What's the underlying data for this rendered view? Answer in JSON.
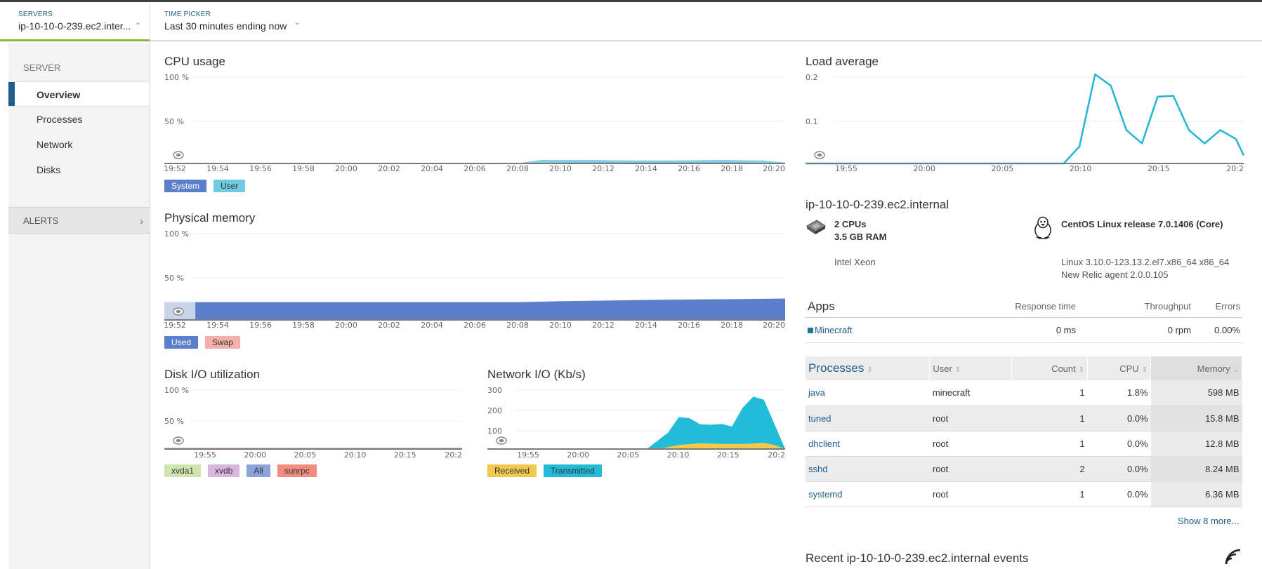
{
  "header": {
    "servers_caption": "SERVERS",
    "servers_value": "ip-10-10-0-239.ec2.inter...",
    "time_caption": "TIME PICKER",
    "time_value": "Last 30 minutes ending now"
  },
  "sidebar": {
    "caption": "SERVER",
    "items": [
      {
        "label": "Overview",
        "active": true
      },
      {
        "label": "Processes"
      },
      {
        "label": "Network"
      },
      {
        "label": "Disks"
      }
    ],
    "alerts_label": "ALERTS"
  },
  "colors": {
    "accent": "#1f5d8a",
    "server_tab_underline": "#8ab63e",
    "system": "#5b7fcc",
    "user": "#6fcbe0",
    "used": "#5b7fcc",
    "swap": "#f4b0a8",
    "xvda1": "#cfe5b0",
    "xvdb": "#d8b6dd",
    "all": "#8aa3d8",
    "sunrpc": "#f28c80",
    "received": "#f2c94c",
    "transmitted": "#22bcd8",
    "load": "#22b6d6"
  },
  "icons": {
    "servers_chevron": "chevron-down-icon",
    "time_chevron": "chevron-down-icon",
    "alerts_arrow": "chevron-right-icon",
    "cpu": "cpu-chip-icon",
    "os": "linux-tux-icon",
    "rss": "rss-icon"
  },
  "chart_data": [
    {
      "id": "cpu",
      "type": "area",
      "title": "CPU usage",
      "y_ticks": [
        "100 %",
        "50 %"
      ],
      "x_ticks": [
        "19:52",
        "19:54",
        "19:56",
        "19:58",
        "20:00",
        "20:02",
        "20:04",
        "20:06",
        "20:08",
        "20:10",
        "20:12",
        "20:14",
        "20:16",
        "20:18",
        "20:20"
      ],
      "x_range": [
        0,
        28
      ],
      "ylim": [
        0,
        100
      ],
      "series": [
        {
          "name": "System",
          "x": [
            0,
            16,
            18,
            20,
            22,
            24,
            26,
            28
          ],
          "values": [
            0.5,
            0.5,
            1,
            1,
            1,
            1,
            1,
            0.5
          ]
        },
        {
          "name": "User",
          "x": [
            0,
            16,
            17,
            19,
            21,
            23,
            25,
            27,
            28
          ],
          "values": [
            0.5,
            0.5,
            4,
            4,
            3.5,
            3.5,
            4,
            3.5,
            1
          ]
        }
      ]
    },
    {
      "id": "mem",
      "type": "area",
      "title": "Physical memory",
      "y_ticks": [
        "100 %",
        "50 %"
      ],
      "x_ticks": [
        "19:52",
        "19:54",
        "19:56",
        "19:58",
        "20:00",
        "20:02",
        "20:04",
        "20:06",
        "20:08",
        "20:10",
        "20:12",
        "20:14",
        "20:16",
        "20:18",
        "20:20"
      ],
      "x_range": [
        0,
        28
      ],
      "ylim": [
        0,
        100
      ],
      "series": [
        {
          "name": "Used",
          "x": [
            0,
            1.4,
            16,
            18,
            22,
            26,
            28
          ],
          "values": [
            20,
            20,
            20,
            21,
            22.5,
            23.5,
            24
          ]
        },
        {
          "name": "Swap",
          "x": [
            0,
            28
          ],
          "values": [
            0,
            0
          ]
        }
      ]
    },
    {
      "id": "disk",
      "type": "line",
      "title": "Disk I/O utilization",
      "y_ticks": [
        "100 %",
        "50 %"
      ],
      "x_ticks": [
        "19:55",
        "20:00",
        "20:05",
        "20:10",
        "20:15",
        "20:2"
      ],
      "x_range": [
        0,
        28
      ],
      "ylim": [
        0,
        100
      ],
      "series": [
        {
          "name": "xvda1",
          "x": [
            0,
            28
          ],
          "values": [
            0,
            0
          ]
        },
        {
          "name": "xvdb",
          "x": [
            0,
            28
          ],
          "values": [
            0,
            0
          ]
        },
        {
          "name": "All",
          "x": [
            0,
            28
          ],
          "values": [
            0.5,
            0.5
          ]
        },
        {
          "name": "sunrpc",
          "x": [
            0,
            28
          ],
          "values": [
            1,
            1
          ]
        }
      ]
    },
    {
      "id": "net",
      "type": "area",
      "title": "Network I/O (Kb/s)",
      "y_ticks": [
        "300",
        "200",
        "100"
      ],
      "x_ticks": [
        "19:55",
        "20:00",
        "20:05",
        "20:10",
        "20:15",
        "20:2"
      ],
      "x_range": [
        0,
        28
      ],
      "ylim": [
        0,
        300
      ],
      "series": [
        {
          "name": "Received",
          "x": [
            0,
            16,
            17,
            18,
            20,
            22,
            24,
            26,
            27,
            28
          ],
          "values": [
            0,
            0,
            10,
            20,
            28,
            25,
            25,
            30,
            20,
            0
          ]
        },
        {
          "name": "Transmitted",
          "x": [
            0,
            15,
            17,
            18,
            19,
            20,
            21,
            22,
            23,
            24,
            25,
            26,
            27,
            28
          ],
          "values": [
            0,
            0,
            80,
            155,
            150,
            120,
            118,
            122,
            110,
            200,
            255,
            240,
            120,
            0
          ]
        }
      ]
    },
    {
      "id": "load",
      "type": "line",
      "title": "Load average",
      "y_ticks": [
        "0.2",
        "0.1"
      ],
      "x_ticks": [
        "19:55",
        "20:00",
        "20:05",
        "20:10",
        "20:15",
        "20:2"
      ],
      "x_range": [
        0,
        28
      ],
      "ylim": [
        0,
        0.2
      ],
      "series": [
        {
          "name": "Load",
          "x": [
            0,
            16.5,
            17.5,
            18.5,
            19.5,
            20.5,
            21.5,
            22.5,
            23.5,
            24.5,
            25.5,
            26.5,
            27.5,
            28
          ],
          "values": [
            0,
            0,
            0.038,
            0.2,
            0.175,
            0.075,
            0.045,
            0.15,
            0.152,
            0.075,
            0.045,
            0.075,
            0.055,
            0.018
          ]
        }
      ]
    }
  ],
  "host": {
    "title": "ip-10-10-0-239.ec2.internal",
    "cpus": "2 CPUs",
    "ram": "3.5 GB RAM",
    "cpu_model": "Intel Xeon",
    "os": "CentOS Linux release 7.0.1406 (Core)",
    "kernel": "Linux 3.10.0-123.13.2.el7.x86_64 x86_64",
    "agent": "New Relic agent 2.0.0.105"
  },
  "apps": {
    "title": "Apps",
    "headers": [
      "Response time",
      "Throughput",
      "Errors"
    ],
    "rows": [
      {
        "name": "Minecraft",
        "response": "0 ms",
        "throughput": "0 rpm",
        "errors": "0.00%"
      }
    ]
  },
  "processes": {
    "title": "Processes",
    "headers": [
      "User",
      "Count",
      "CPU",
      "Memory"
    ],
    "rows": [
      {
        "name": "java",
        "user": "minecraft",
        "count": "1",
        "cpu": "1.8%",
        "memory": "598 MB"
      },
      {
        "name": "tuned",
        "user": "root",
        "count": "1",
        "cpu": "0.0%",
        "memory": "15.8 MB"
      },
      {
        "name": "dhclient",
        "user": "root",
        "count": "1",
        "cpu": "0.0%",
        "memory": "12.8 MB"
      },
      {
        "name": "sshd",
        "user": "root",
        "count": "2",
        "cpu": "0.0%",
        "memory": "8.24 MB"
      },
      {
        "name": "systemd",
        "user": "root",
        "count": "1",
        "cpu": "0.0%",
        "memory": "6.36 MB"
      }
    ],
    "show_more": "Show 8 more..."
  },
  "events": {
    "title": "Recent ip-10-10-0-239.ec2.internal events"
  }
}
